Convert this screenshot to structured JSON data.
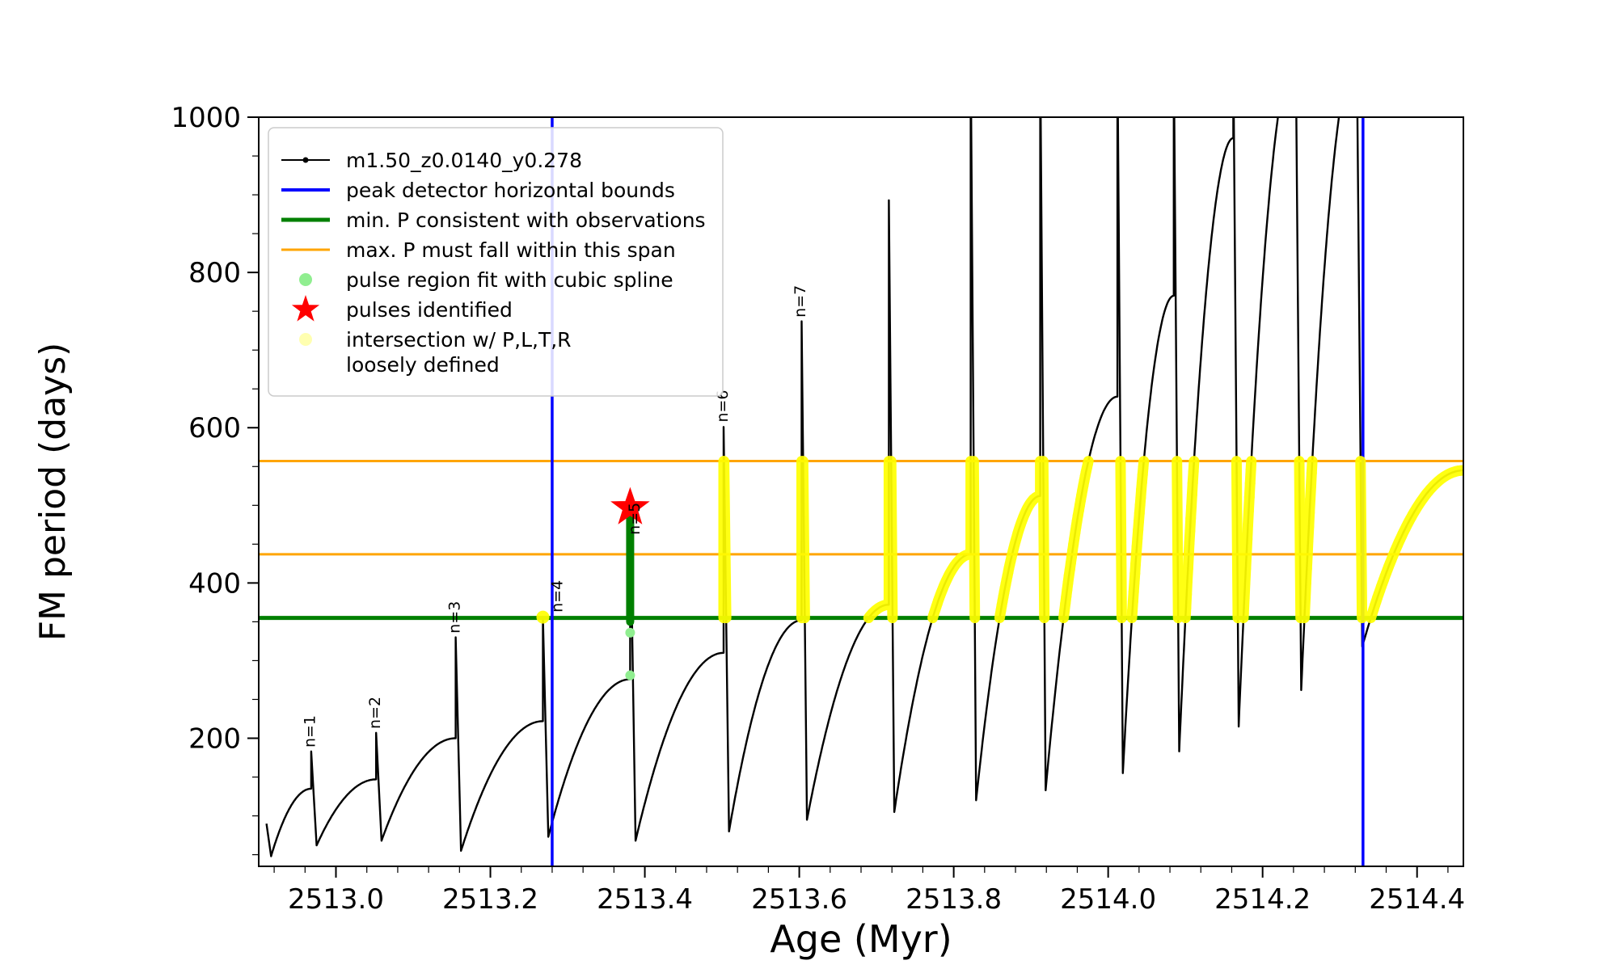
{
  "chart_data": {
    "type": "line",
    "title": "",
    "xlabel": "Age (Myr)",
    "ylabel": "FM period (days)",
    "xlim": [
      2512.9,
      2514.46
    ],
    "ylim": [
      35,
      1000
    ],
    "xticks": [
      2513.0,
      2513.2,
      2513.4,
      2513.6,
      2513.8,
      2514.0,
      2514.2,
      2514.4
    ],
    "xtick_labels": [
      "2513.0",
      "2513.2",
      "2513.4",
      "2513.6",
      "2513.8",
      "2514.0",
      "2514.2",
      "2514.4"
    ],
    "yticks": [
      200,
      400,
      600,
      800,
      1000
    ],
    "ytick_labels": [
      "200",
      "400",
      "600",
      "800",
      "1000"
    ],
    "x_minor_step": 0.04,
    "y_minor_step": 50,
    "grid": false,
    "legend_position": "upper-left",
    "series_name": "m1.50_z0.0140_y0.278",
    "track_color": "#000000",
    "pre_points": [
      [
        2512.91,
        90
      ],
      [
        2512.916,
        48
      ]
    ],
    "cycles": [
      {
        "a0": 2512.916,
        "p0": 48,
        "a1": 2512.968,
        "p1": 135,
        "spike": 183
      },
      {
        "a0": 2512.975,
        "p0": 62,
        "a1": 2513.052,
        "p1": 147,
        "spike": 207
      },
      {
        "a0": 2513.059,
        "p0": 68,
        "a1": 2513.155,
        "p1": 200,
        "spike": 330
      },
      {
        "a0": 2513.162,
        "p0": 55,
        "a1": 2513.268,
        "p1": 222,
        "spike": 356
      },
      {
        "a0": 2513.275,
        "p0": 73,
        "a1": 2513.381,
        "p1": 276,
        "spike": 500
      },
      {
        "a0": 2513.388,
        "p0": 68,
        "a1": 2513.502,
        "p1": 310,
        "spike": 601
      },
      {
        "a0": 2513.509,
        "p0": 80,
        "a1": 2513.603,
        "p1": 352,
        "spike": 737
      },
      {
        "a0": 2513.61,
        "p0": 95,
        "a1": 2513.716,
        "p1": 372,
        "spike": 893
      },
      {
        "a0": 2513.723,
        "p0": 105,
        "a1": 2513.822,
        "p1": 437,
        "spike": 1085
      },
      {
        "a0": 2513.829,
        "p0": 120,
        "a1": 2513.912,
        "p1": 512,
        "spike": 1085
      },
      {
        "a0": 2513.919,
        "p0": 133,
        "a1": 2514.012,
        "p1": 640,
        "spike": 1085
      },
      {
        "a0": 2514.019,
        "p0": 155,
        "a1": 2514.085,
        "p1": 770,
        "spike": 1085
      },
      {
        "a0": 2514.092,
        "p0": 183,
        "a1": 2514.162,
        "p1": 973,
        "spike": 1085
      },
      {
        "a0": 2514.169,
        "p0": 215,
        "a1": 2514.243,
        "p1": 1085,
        "spike": 1085
      },
      {
        "a0": 2514.25,
        "p0": 262,
        "a1": 2514.322,
        "p1": 1085,
        "spike": 1085
      },
      {
        "a0": 2514.329,
        "p0": 318,
        "a1": 2514.46,
        "p1": 545,
        "spike": 545
      }
    ],
    "peak_bounds": {
      "color": "#0000ff",
      "x_values": [
        2513.28,
        2514.33
      ]
    },
    "min_p_line": {
      "color": "#008000",
      "y": 355
    },
    "max_p_span": {
      "color": "#ffa500",
      "y_values": [
        437,
        557
      ]
    },
    "intersection": {
      "color": "#ffff00",
      "band": [
        355,
        557
      ],
      "start_age": 2513.49
    },
    "n4_intersection_dot": {
      "x": 2513.268,
      "y": 356
    },
    "pulse_region_fit": {
      "bar_color": "#008000",
      "dot_color": "#90ee90",
      "bar": {
        "x": 2513.381,
        "p0": 350,
        "p1": 500
      },
      "dots": [
        [
          2513.381,
          281
        ],
        [
          2513.381,
          336
        ]
      ]
    },
    "pulse_star": {
      "color": "#ff0000",
      "x": 2513.381,
      "y": 497
    },
    "pulse_labels": [
      {
        "text": "n=1",
        "x": 2512.973,
        "y": 188
      },
      {
        "text": "n=2",
        "x": 2513.057,
        "y": 212
      },
      {
        "text": "n=3",
        "x": 2513.16,
        "y": 335
      },
      {
        "text": "n=4",
        "x": 2513.293,
        "y": 362
      },
      {
        "text": "n=5",
        "x": 2513.393,
        "y": 462
      },
      {
        "text": "n=6",
        "x": 2513.507,
        "y": 607
      },
      {
        "text": "n=7",
        "x": 2513.608,
        "y": 742
      }
    ],
    "legend": {
      "items": [
        {
          "marker": "line-dot",
          "color": "#000000",
          "lw": 2,
          "lines": [
            "m1.50_z0.0140_y0.278"
          ]
        },
        {
          "marker": "line",
          "color": "#0000ff",
          "lw": 4,
          "lines": [
            "peak detector horizontal bounds"
          ]
        },
        {
          "marker": "line",
          "color": "#008000",
          "lw": 5,
          "lines": [
            "min. P consistent with observations"
          ]
        },
        {
          "marker": "line",
          "color": "#ffa500",
          "lw": 3,
          "lines": [
            "max. P must fall within this span"
          ]
        },
        {
          "marker": "dot",
          "color": "#90ee90",
          "lw": 0,
          "lines": [
            "pulse region fit with cubic spline"
          ]
        },
        {
          "marker": "star",
          "color": "#ff0000",
          "lw": 0,
          "lines": [
            "pulses identified"
          ]
        },
        {
          "marker": "dot",
          "color": "#ffffb0",
          "lw": 0,
          "lines": [
            "intersection w/ P,L,T,R",
            "loosely defined"
          ]
        }
      ]
    }
  }
}
